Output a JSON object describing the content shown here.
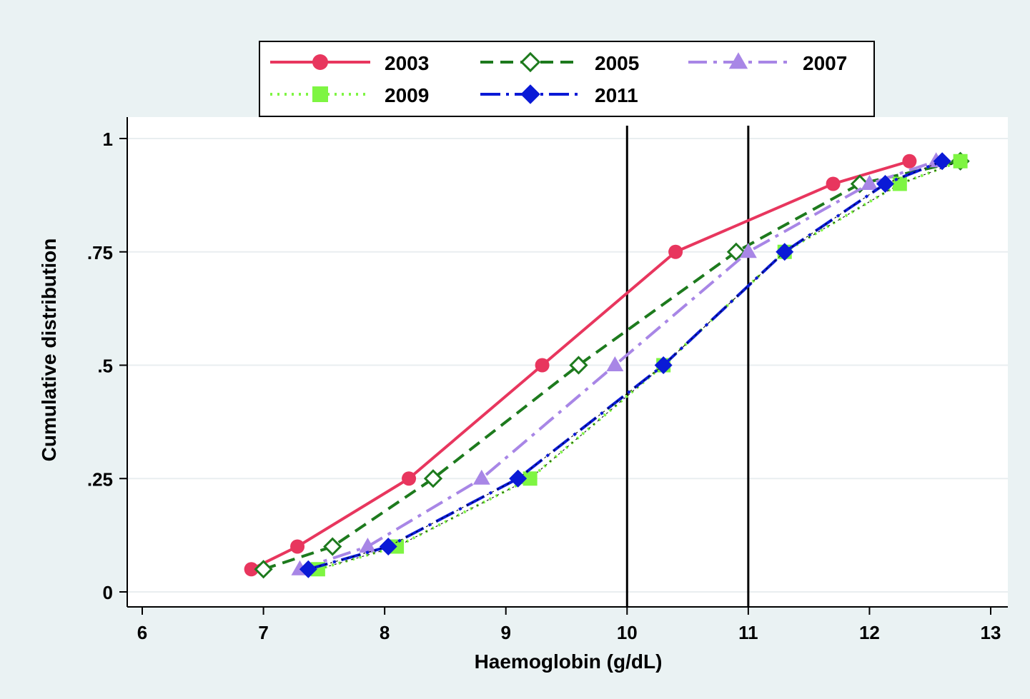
{
  "chart_data": {
    "type": "line",
    "xlabel": "Haemoglobin (g/dL)",
    "ylabel": "Cumulative distribution",
    "xlim": [
      6,
      13
    ],
    "ylim": [
      0,
      1
    ],
    "x_ticks": [
      {
        "value": 6,
        "label": "6"
      },
      {
        "value": 7,
        "label": "7"
      },
      {
        "value": 8,
        "label": "8"
      },
      {
        "value": 9,
        "label": "9"
      },
      {
        "value": 10,
        "label": "10"
      },
      {
        "value": 11,
        "label": "11"
      },
      {
        "value": 12,
        "label": "12"
      },
      {
        "value": 13,
        "label": "13"
      }
    ],
    "y_ticks": [
      {
        "value": 0,
        "label": "0"
      },
      {
        "value": 0.25,
        "label": ".25"
      },
      {
        "value": 0.5,
        "label": ".5"
      },
      {
        "value": 0.75,
        "label": ".75"
      },
      {
        "value": 1,
        "label": "1"
      }
    ],
    "grid": "horizontal",
    "reference_lines_x": [
      10,
      11
    ],
    "legend_position": "top",
    "series": [
      {
        "name": "2003",
        "color": "#e8365e",
        "dash": "solid",
        "marker": "circle",
        "points": [
          [
            6.9,
            0.05
          ],
          [
            7.28,
            0.1
          ],
          [
            8.2,
            0.25
          ],
          [
            9.3,
            0.5
          ],
          [
            10.4,
            0.75
          ],
          [
            11.7,
            0.9
          ],
          [
            12.33,
            0.95
          ]
        ]
      },
      {
        "name": "2005",
        "color": "#1d7a1d",
        "dash": "dash",
        "marker": "diamond-open",
        "points": [
          [
            7.0,
            0.05
          ],
          [
            7.57,
            0.1
          ],
          [
            8.4,
            0.25
          ],
          [
            9.6,
            0.5
          ],
          [
            10.9,
            0.75
          ],
          [
            11.92,
            0.9
          ],
          [
            12.75,
            0.95
          ]
        ]
      },
      {
        "name": "2007",
        "color": "#a886e6",
        "dash": "longdash",
        "marker": "triangle",
        "points": [
          [
            7.3,
            0.05
          ],
          [
            7.86,
            0.1
          ],
          [
            8.8,
            0.25
          ],
          [
            9.9,
            0.5
          ],
          [
            11.0,
            0.75
          ],
          [
            12.0,
            0.9
          ],
          [
            12.55,
            0.95
          ]
        ]
      },
      {
        "name": "2009",
        "color": "#7ef542",
        "dash": "dot",
        "marker": "square",
        "points": [
          [
            7.45,
            0.05
          ],
          [
            8.1,
            0.1
          ],
          [
            9.2,
            0.25
          ],
          [
            10.3,
            0.5
          ],
          [
            11.3,
            0.75
          ],
          [
            12.25,
            0.9
          ],
          [
            12.75,
            0.95
          ]
        ]
      },
      {
        "name": "2011",
        "color": "#0a1ad6",
        "dash": "dashdot",
        "marker": "diamond",
        "points": [
          [
            7.37,
            0.05
          ],
          [
            8.03,
            0.1
          ],
          [
            9.1,
            0.25
          ],
          [
            10.3,
            0.5
          ],
          [
            11.3,
            0.75
          ],
          [
            12.13,
            0.9
          ],
          [
            12.6,
            0.95
          ]
        ]
      }
    ]
  }
}
